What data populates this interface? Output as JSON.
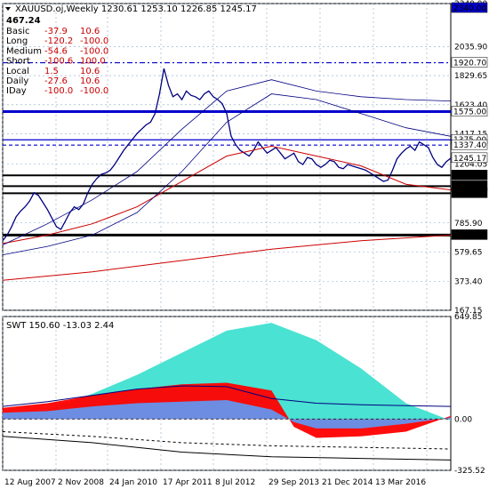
{
  "header": {
    "symbol_line": "XAUUSD.oj,Weekly  1230.61 1253.10 1226.85 1245.17",
    "value": "467.24"
  },
  "info_rows": [
    {
      "label": "Basic",
      "v1": "-37.9",
      "v2": "10.6"
    },
    {
      "label": "Long",
      "v1": "-120.2",
      "v2": "-100.0"
    },
    {
      "label": "Medium",
      "v1": "-54.6",
      "v2": "-100.0"
    },
    {
      "label": "Short",
      "v1": "-100.6",
      "v2": "100.0"
    },
    {
      "label": "Local",
      "v1": "1.5",
      "v2": "10.6"
    },
    {
      "label": "Daily",
      "v1": "-27.6",
      "v2": "10.6"
    },
    {
      "label": "IDay",
      "v1": "-100.0",
      "v2": "-100.0"
    }
  ],
  "colors": {
    "price": "#000080",
    "ma_red": "#cc0000",
    "ma_navy": "#000080",
    "teal": "#40e0d0",
    "steel": "#6495ed",
    "red_fill": "#ff0000",
    "hline": "#0000cc"
  },
  "chart_data": [
    {
      "type": "line",
      "pane": "main",
      "ylim": [
        167.15,
        2340.0
      ],
      "y_ticks": [
        "2340.00",
        "2035.90",
        "1829.65",
        "1623.40",
        "1417.15",
        "1204.05",
        "785.90",
        "579.65",
        "373.40",
        "167.15"
      ],
      "y_tick_values": [
        2340,
        2035.9,
        1829.65,
        1623.4,
        1417.15,
        1204.05,
        785.9,
        579.65,
        373.4,
        167.15
      ],
      "x_labels": [
        "12 Aug 2007",
        "2 Nov 2008",
        "24 Jan 2010",
        "17 Apr 2011",
        "8 Jul 2012",
        "29 Sep 2013",
        "21 Dec 2014",
        "13 Mar 2016"
      ],
      "horizontal_levels": [
        {
          "value": 1920.7,
          "label": "1920.70",
          "style": "dashdot"
        },
        {
          "value": 1575.0,
          "label": "1575.00",
          "style": "thick"
        },
        {
          "value": 1375.0,
          "label": "1375.00",
          "style": "solid"
        },
        {
          "value": 1337.4,
          "label": "1337.40",
          "style": "dashed"
        },
        {
          "value": 1122.5,
          "label": "1122.50",
          "style": "solid"
        },
        {
          "value": 1046.3,
          "label": "1046.30",
          "style": "solid"
        },
        {
          "value": 996.4,
          "label": "996.40",
          "style": "solid"
        },
        {
          "value": 700.0,
          "label": "700.00",
          "style": "thick"
        }
      ],
      "current_price": {
        "value": 1245.17,
        "label": "1245.17"
      },
      "series": [
        {
          "role": "price",
          "x": [
            0,
            1,
            2,
            3,
            4,
            5,
            6,
            7,
            8,
            9,
            10,
            11,
            12,
            13,
            14,
            15,
            16,
            17,
            18,
            19,
            20,
            21,
            22,
            23,
            24,
            25,
            26,
            27,
            28,
            29,
            30,
            31,
            32,
            33,
            34,
            35,
            36,
            37,
            38,
            39,
            40,
            41,
            42,
            43,
            44,
            45,
            46,
            47,
            48,
            49,
            50,
            51,
            52,
            53,
            54,
            55,
            56,
            57,
            58,
            59,
            60,
            61,
            62,
            63,
            64,
            65,
            66,
            67,
            68,
            69,
            70,
            71,
            72,
            73,
            74,
            75,
            76,
            77,
            78,
            79,
            80,
            81,
            82,
            83,
            84,
            85,
            86,
            87,
            88,
            89,
            90,
            91,
            92,
            93,
            94,
            95,
            96,
            97,
            98,
            99,
            100
          ],
          "y": [
            660,
            700,
            760,
            830,
            870,
            900,
            940,
            1000,
            980,
            930,
            880,
            820,
            760,
            740,
            800,
            860,
            900,
            880,
            920,
            1000,
            1060,
            1100,
            1130,
            1140,
            1160,
            1200,
            1250,
            1300,
            1340,
            1380,
            1420,
            1450,
            1480,
            1500,
            1560,
            1700,
            1880,
            1760,
            1680,
            1700,
            1660,
            1720,
            1690,
            1680,
            1660,
            1700,
            1720,
            1680,
            1660,
            1630,
            1560,
            1400,
            1340,
            1300,
            1280,
            1260,
            1300,
            1360,
            1320,
            1280,
            1300,
            1320,
            1280,
            1240,
            1260,
            1280,
            1220,
            1200,
            1250,
            1240,
            1200,
            1180,
            1200,
            1230,
            1220,
            1180,
            1170,
            1200,
            1190,
            1180,
            1170,
            1160,
            1140,
            1120,
            1100,
            1080,
            1090,
            1160,
            1240,
            1280,
            1310,
            1330,
            1300,
            1360,
            1340,
            1320,
            1250,
            1200,
            1180,
            1220,
            1245
          ]
        },
        {
          "role": "ma-red",
          "x": [
            0,
            10,
            20,
            30,
            40,
            50,
            60,
            70,
            80,
            90,
            100
          ],
          "y": [
            640,
            700,
            780,
            900,
            1080,
            1260,
            1330,
            1260,
            1190,
            1060,
            1020
          ]
        },
        {
          "role": "ma-navy-fast",
          "x": [
            0,
            10,
            20,
            30,
            40,
            50,
            60,
            70,
            80,
            90,
            100
          ],
          "y": [
            630,
            780,
            950,
            1150,
            1450,
            1720,
            1800,
            1720,
            1680,
            1660,
            1650
          ]
        },
        {
          "role": "ma-navy-slow",
          "x": [
            0,
            10,
            20,
            30,
            40,
            50,
            60,
            70,
            80,
            90,
            100
          ],
          "y": [
            560,
            620,
            700,
            860,
            1150,
            1500,
            1700,
            1660,
            1560,
            1460,
            1400
          ]
        },
        {
          "role": "ma-long-red",
          "x": [
            0,
            20,
            40,
            60,
            80,
            100
          ],
          "y": [
            380,
            440,
            520,
            600,
            660,
            700
          ]
        }
      ]
    },
    {
      "type": "area",
      "pane": "indicator",
      "title": "SWT 150.60 -13.03 2.44",
      "ylim": [
        -325.52,
        649.85
      ],
      "y_ticks": [
        "649.85",
        "0.00",
        "-325.52"
      ],
      "y_tick_values": [
        649.85,
        0,
        -325.52
      ],
      "series": [
        {
          "role": "teal-area",
          "x": [
            0,
            10,
            20,
            30,
            40,
            50,
            60,
            70,
            80,
            90,
            100
          ],
          "y": [
            20,
            60,
            160,
            280,
            420,
            560,
            610,
            500,
            320,
            100,
            -10
          ]
        },
        {
          "role": "red-area",
          "x": [
            0,
            10,
            20,
            30,
            40,
            50,
            60,
            65,
            70,
            80,
            90,
            100
          ],
          "y": [
            70,
            100,
            150,
            190,
            220,
            230,
            180,
            -50,
            -120,
            -110,
            -80,
            20
          ]
        },
        {
          "role": "steel-area",
          "x": [
            0,
            10,
            20,
            30,
            40,
            50,
            60,
            65,
            70,
            80,
            90,
            100
          ],
          "y": [
            40,
            50,
            80,
            100,
            110,
            120,
            60,
            -20,
            -60,
            -60,
            -30,
            10
          ]
        },
        {
          "role": "navy-line",
          "x": [
            0,
            10,
            20,
            30,
            40,
            50,
            60,
            70,
            80,
            90,
            100
          ],
          "y": [
            80,
            110,
            150,
            190,
            210,
            205,
            130,
            100,
            90,
            85,
            80
          ]
        },
        {
          "role": "black-dash",
          "x": [
            0,
            20,
            40,
            60,
            80,
            100
          ],
          "y": [
            -80,
            -110,
            -150,
            -170,
            -180,
            -190
          ]
        },
        {
          "role": "black-line",
          "x": [
            0,
            20,
            40,
            60,
            80,
            100
          ],
          "y": [
            -110,
            -150,
            -210,
            -240,
            -250,
            -260
          ]
        }
      ]
    }
  ]
}
